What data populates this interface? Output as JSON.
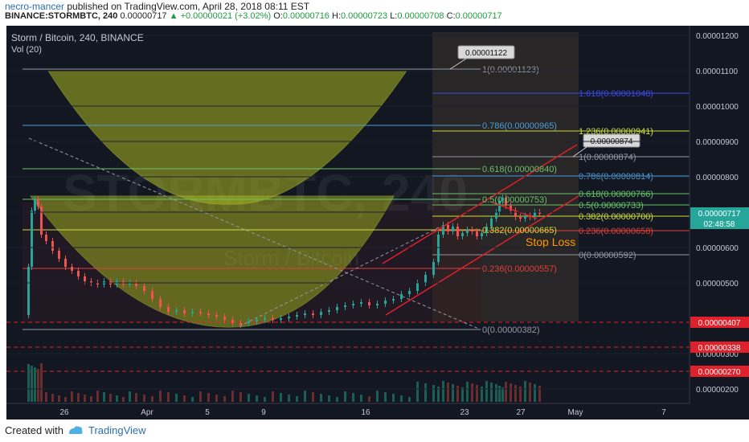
{
  "header": {
    "user": "necro-mancer",
    "published_text": " published on TradingView.com, April 28, 2018 08:11 EST",
    "symbol": "BINANCE:STORMBTC, 240",
    "price": "0.00000717",
    "change": "+0.00000021 (+3.02%)",
    "o_label": "O:",
    "o_value": "0.00000716",
    "h_label": "H:",
    "h_value": "0.00000723",
    "l_label": "L:",
    "l_value": "0.00000708",
    "c_label": "C:",
    "c_value": "0.00000717"
  },
  "chart": {
    "title": "Storm / Bitcoin, 240, BINANCE",
    "volume_label": "Vol (20)",
    "watermark_top": "STORMBTC, 240",
    "watermark_bottom": "Storm / Bitcoin",
    "y_ticks": [
      "0.00001200",
      "0.00001100",
      "0.00001000",
      "0.00000900",
      "0.00000800",
      "0.00000700",
      "0.00000600",
      "0.00000500",
      "0.00000300",
      "0.00000200"
    ],
    "x_ticks": [
      "26",
      "Apr",
      "5",
      "9",
      "16",
      "23",
      "27",
      "May",
      "7"
    ],
    "price_tags": [
      {
        "label": "0.00000717",
        "color": "#26a69a"
      },
      {
        "label": "02:48:58",
        "color": "#26a69a"
      },
      {
        "label": "0.00000407",
        "color": "#e0202a"
      },
      {
        "label": "0.00000338",
        "color": "#e0202a"
      },
      {
        "label": "0.00000270",
        "color": "#e0202a"
      }
    ],
    "callouts": [
      "0.00001122",
      "0.00000874"
    ],
    "fib_left": [
      {
        "text": "1(0.00001123)",
        "color": "#9598a1"
      },
      {
        "text": "0.786(0.00000965)",
        "color": "#4c9ed8"
      },
      {
        "text": "0.618(0.00000840)",
        "color": "#67c36a"
      },
      {
        "text": "0.5(0.00000753)",
        "color": "#67c36a"
      },
      {
        "text": "0.382(0.00000665)",
        "color": "#cddc39"
      },
      {
        "text": "0.236(0.00000557)",
        "color": "#e0403a"
      },
      {
        "text": "0(0.00000382)",
        "color": "#9598a1"
      }
    ],
    "fib_right": [
      {
        "text": "1.618(0.00001048)",
        "color": "#3b4ae0"
      },
      {
        "text": "1.236(0.00000941)",
        "color": "#cddc39"
      },
      {
        "text": "1(0.00000874)",
        "color": "#9598a1"
      },
      {
        "text": "0.786(0.00000814)",
        "color": "#4c9ed8"
      },
      {
        "text": "0.618(0.00000766)",
        "color": "#67c36a"
      },
      {
        "text": "0.5(0.00000733)",
        "color": "#67c36a"
      },
      {
        "text": "0.382(0.00000700)",
        "color": "#cddc39"
      },
      {
        "text": "0.236(0.00000658)",
        "color": "#e0403a"
      },
      {
        "text": "0(0.00000592)",
        "color": "#9598a1"
      }
    ],
    "stop_loss": "Stop Loss"
  },
  "footer": {
    "created": "Created with",
    "brand": "TradingView"
  }
}
